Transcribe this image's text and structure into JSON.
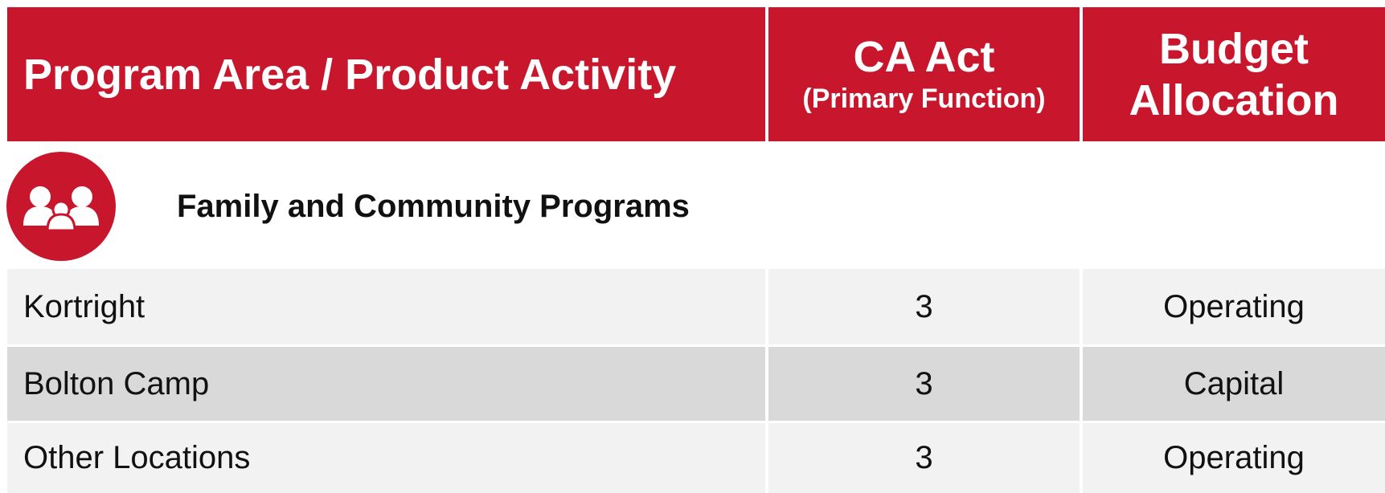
{
  "table": {
    "header": [
      "Program Area / Product Activity",
      "CA Act",
      "(Primary Function)",
      "Budget Allocation"
    ],
    "section": "Family and Community Programs",
    "rows": [
      [
        "Kortright",
        3,
        "Operating"
      ],
      [
        "Bolton Camp",
        3,
        "Capital"
      ],
      [
        "Other Locations",
        3,
        "Operating"
      ]
    ]
  }
}
